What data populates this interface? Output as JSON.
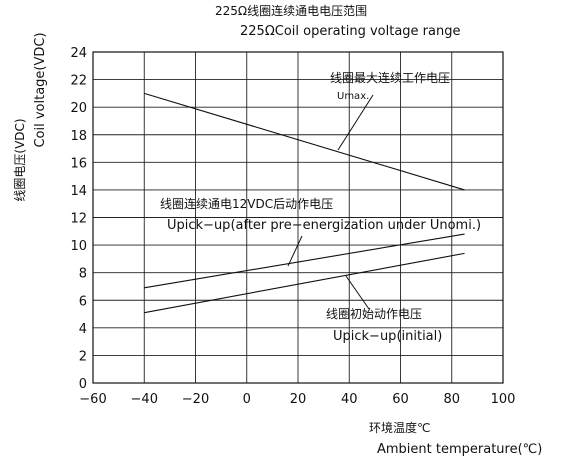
{
  "chart_data": {
    "type": "line",
    "title": "225Ω线圈连续通电电压范围",
    "subtitle": "225ΩCoil  operating  voltage  range",
    "ylabel_cn": "线圈电压(VDC)",
    "ylabel": "Coil  voltage(VDC)",
    "xlabel_cn": "环境温度℃",
    "xlabel": "Ambient  temperature(℃)",
    "xlim": [
      -60,
      100
    ],
    "ylim": [
      0,
      24
    ],
    "x_ticks": [
      "−60",
      "−40",
      "−20",
      "0",
      "20",
      "40",
      "60",
      "80",
      "100"
    ],
    "y_ticks": [
      "0",
      "2",
      "4",
      "6",
      "8",
      "10",
      "12",
      "14",
      "16",
      "18",
      "20",
      "22",
      "24"
    ],
    "grid": true,
    "series": [
      {
        "name": "Umax.",
        "x": [
          -40,
          85
        ],
        "y": [
          21.0,
          14.0
        ],
        "label_cn": "线圈最大连续工作电压",
        "label_en": "Umax."
      },
      {
        "name": "Upick-up(after pre-energization under Unomi.)",
        "x": [
          -40,
          85
        ],
        "y": [
          6.9,
          10.8
        ],
        "label_cn": "线圈连续通电12VDC后动作电压",
        "label_en": "Upick−up(after pre−energization under Unomi.)"
      },
      {
        "name": "Upick-up(initial)",
        "x": [
          -40,
          85
        ],
        "y": [
          5.1,
          9.4
        ],
        "label_cn": "线圈初始动作电压",
        "label_en": "Upick−up(initial)"
      }
    ]
  }
}
